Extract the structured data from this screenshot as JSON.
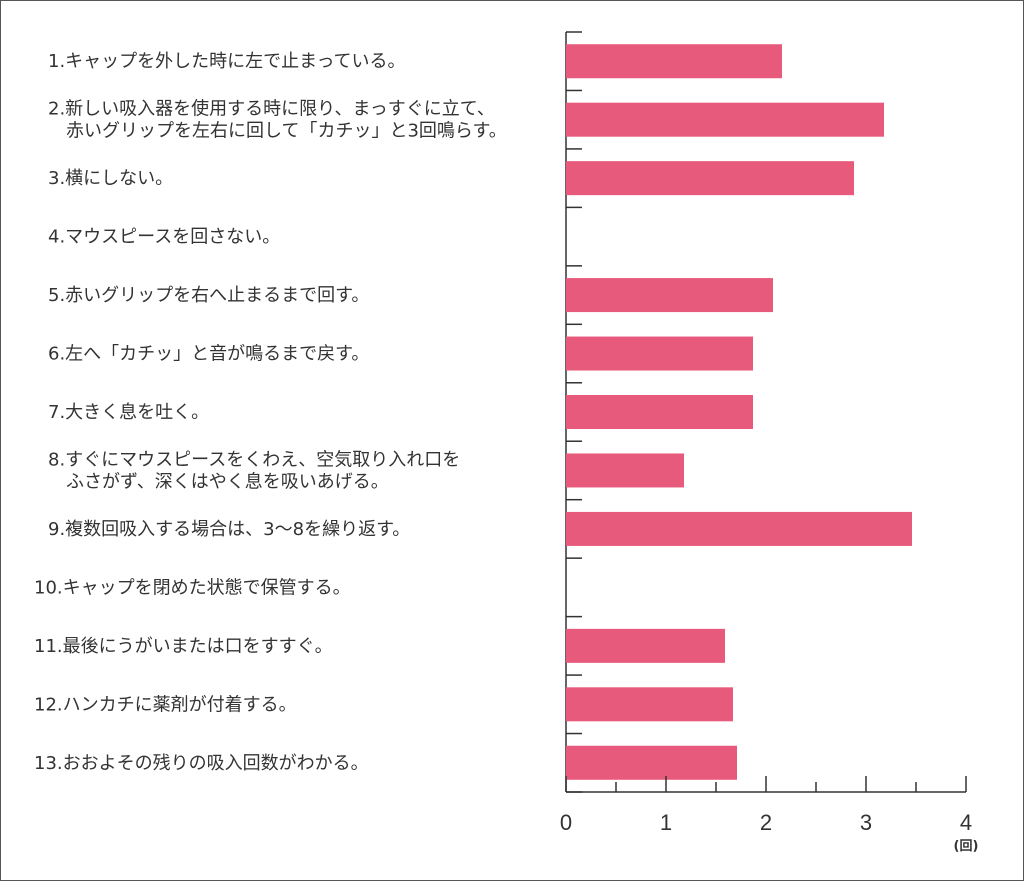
{
  "chart_data": {
    "type": "bar",
    "orientation": "horizontal",
    "categories": [
      [
        "1.キャップを外した時に左で止まっている。"
      ],
      [
        "2.新しい吸入器を使用する時に限り、まっすぐに立て、",
        "赤いグリップを左右に回して「カチッ」と3回鳴らす。"
      ],
      [
        "3.横にしない。"
      ],
      [
        "4.マウスピースを回さない。"
      ],
      [
        "5.赤いグリップを右へ止まるまで回す。"
      ],
      [
        "6.左へ「カチッ」と音が鳴るまで戻す。"
      ],
      [
        "7.大きく息を吐く。"
      ],
      [
        "8.すぐにマウスピースをくわえ、空気取り入れ口を",
        "ふさがず、深くはやく息を吸いあげる。"
      ],
      [
        "9.複数回吸入する場合は、3〜8を繰り返す。"
      ],
      [
        "10.キャップを閉めた状態で保管する。"
      ],
      [
        "11.最後にうがいまたは口をすすぐ。"
      ],
      [
        "12.ハンカチに薬剤が付着する。"
      ],
      [
        "13.おおよその残りの吸入回数がわかる。"
      ]
    ],
    "values": [
      2.16,
      3.18,
      2.88,
      0,
      2.07,
      1.87,
      1.87,
      1.18,
      3.46,
      0,
      1.59,
      1.67,
      1.71
    ],
    "xlim": [
      0,
      4
    ],
    "xticks": [
      "0",
      "1",
      "2",
      "3",
      "4"
    ],
    "x_unit": "(回)",
    "bar_color": "#e85a7b",
    "axis_color": "#333333",
    "grid": false
  }
}
